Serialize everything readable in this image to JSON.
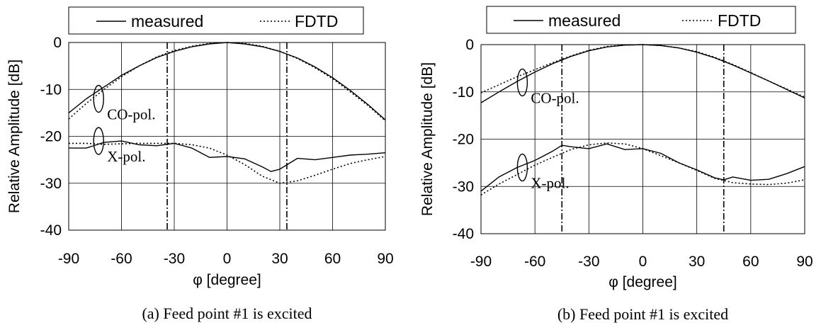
{
  "chart_data": [
    {
      "type": "line",
      "caption": "(a) Feed point #1 is excited",
      "xlabel": "φ [degree]",
      "ylabel": "Relative Amplitude [dB]",
      "xlim": [
        -90,
        90
      ],
      "ylim": [
        -40,
        0
      ],
      "x_ticks": [
        -90,
        -60,
        -30,
        0,
        30,
        60,
        90
      ],
      "y_ticks": [
        0,
        -10,
        -20,
        -30,
        -40
      ],
      "grid": true,
      "legend": {
        "position": "top",
        "entries": [
          {
            "label": "measured",
            "style": "solid"
          },
          {
            "label": "FDTD",
            "style": "dotted"
          }
        ]
      },
      "annotations": [
        {
          "text": "CO-pol.",
          "x": -73,
          "y": -12
        },
        {
          "text": "X-pol.",
          "x": -73,
          "y": -21
        }
      ],
      "vlines": [
        {
          "x": -34,
          "style": "dashdot"
        },
        {
          "x": 34,
          "style": "dashdot"
        }
      ],
      "series": [
        {
          "name": "measured",
          "group": "CO-pol.",
          "style": "solid",
          "x": [
            -90,
            -80,
            -70,
            -60,
            -50,
            -40,
            -30,
            -20,
            -10,
            0,
            10,
            20,
            30,
            40,
            50,
            60,
            70,
            80,
            90
          ],
          "y": [
            -15,
            -12,
            -9.5,
            -7,
            -5,
            -3.2,
            -1.9,
            -0.9,
            -0.3,
            0,
            -0.3,
            -0.9,
            -1.9,
            -3.3,
            -5.2,
            -7.5,
            -10.2,
            -13.2,
            -16.5
          ]
        },
        {
          "name": "FDTD",
          "group": "CO-pol.",
          "style": "dotted",
          "x": [
            -90,
            -80,
            -70,
            -60,
            -50,
            -40,
            -30,
            -20,
            -10,
            0,
            10,
            20,
            30,
            40,
            50,
            60,
            70,
            80,
            90
          ],
          "y": [
            -16.3,
            -13,
            -10,
            -7.3,
            -5,
            -3.1,
            -1.7,
            -0.8,
            -0.2,
            0,
            -0.2,
            -0.8,
            -1.9,
            -3.4,
            -5.4,
            -7.7,
            -10.5,
            -13.4,
            -16.7
          ]
        },
        {
          "name": "measured",
          "group": "X-pol.",
          "style": "solid",
          "x": [
            -90,
            -80,
            -70,
            -60,
            -50,
            -40,
            -30,
            -20,
            -10,
            0,
            10,
            20,
            25,
            30,
            40,
            50,
            60,
            70,
            80,
            90
          ],
          "y": [
            -22.5,
            -22.5,
            -21.3,
            -21,
            -21.8,
            -22,
            -21.5,
            -22.5,
            -24.5,
            -24.3,
            -24.8,
            -26.5,
            -27.5,
            -27,
            -24.7,
            -25,
            -24.5,
            -24,
            -23.8,
            -23.5
          ]
        },
        {
          "name": "FDTD",
          "group": "X-pol.",
          "style": "dotted",
          "x": [
            -90,
            -80,
            -70,
            -60,
            -50,
            -40,
            -30,
            -20,
            -10,
            0,
            10,
            20,
            30,
            40,
            50,
            60,
            70,
            80,
            90
          ],
          "y": [
            -21.5,
            -21.5,
            -21.7,
            -21.6,
            -21.5,
            -21.5,
            -21.5,
            -21.8,
            -22.5,
            -24,
            -26,
            -28.5,
            -30,
            -29.5,
            -28.3,
            -27,
            -25.8,
            -25,
            -24.3
          ]
        }
      ]
    },
    {
      "type": "line",
      "caption": "(b) Feed point #1 is excited",
      "xlabel": "φ [degree]",
      "ylabel": "Relative Amplitude [dB]",
      "xlim": [
        -90,
        90
      ],
      "ylim": [
        -40,
        0
      ],
      "x_ticks": [
        -90,
        -60,
        -30,
        0,
        30,
        60,
        90
      ],
      "y_ticks": [
        0,
        -10,
        -20,
        -30,
        -40
      ],
      "grid": true,
      "legend": {
        "position": "top",
        "entries": [
          {
            "label": "measured",
            "style": "solid"
          },
          {
            "label": "FDTD",
            "style": "dotted"
          }
        ]
      },
      "annotations": [
        {
          "text": "CO-pol.",
          "x": -67,
          "y": -8
        },
        {
          "text": "X-pol.",
          "x": -67,
          "y": -26
        }
      ],
      "vlines": [
        {
          "x": -45,
          "style": "dashdot"
        },
        {
          "x": 45,
          "style": "dashdot"
        }
      ],
      "series": [
        {
          "name": "measured",
          "group": "CO-pol.",
          "style": "solid",
          "x": [
            -90,
            -80,
            -70,
            -60,
            -50,
            -40,
            -30,
            -20,
            -10,
            0,
            10,
            20,
            30,
            40,
            50,
            60,
            70,
            80,
            90
          ],
          "y": [
            -12.3,
            -10,
            -7.8,
            -5.8,
            -4,
            -2.5,
            -1.3,
            -0.5,
            -0.1,
            0,
            -0.2,
            -0.7,
            -1.6,
            -2.8,
            -4.3,
            -6,
            -7.7,
            -9.5,
            -11.3
          ]
        },
        {
          "name": "FDTD",
          "group": "CO-pol.",
          "style": "dotted",
          "x": [
            -90,
            -80,
            -70,
            -60,
            -50,
            -40,
            -30,
            -20,
            -10,
            0,
            10,
            20,
            30,
            40,
            50,
            60,
            70,
            80,
            90
          ],
          "y": [
            -10.2,
            -8.5,
            -6.8,
            -5.3,
            -3.8,
            -2.4,
            -1.2,
            -0.4,
            -0.1,
            0,
            -0.2,
            -0.7,
            -1.5,
            -2.7,
            -4.2,
            -5.9,
            -7.7,
            -9.4,
            -11.1
          ]
        },
        {
          "name": "measured",
          "group": "X-pol.",
          "style": "solid",
          "x": [
            -90,
            -80,
            -70,
            -60,
            -50,
            -45,
            -40,
            -30,
            -20,
            -10,
            0,
            10,
            20,
            30,
            40,
            45,
            50,
            60,
            70,
            80,
            90
          ],
          "y": [
            -31,
            -28,
            -26,
            -24.5,
            -22.5,
            -21.3,
            -21.6,
            -22,
            -21,
            -22.2,
            -22,
            -23,
            -25,
            -26.5,
            -28.2,
            -28.6,
            -28,
            -28.7,
            -28.5,
            -27.3,
            -25.8
          ]
        },
        {
          "name": "FDTD",
          "group": "X-pol.",
          "style": "dotted",
          "x": [
            -90,
            -80,
            -70,
            -60,
            -50,
            -40,
            -30,
            -20,
            -10,
            0,
            10,
            20,
            30,
            40,
            50,
            60,
            70,
            80,
            90
          ],
          "y": [
            -31.8,
            -29.5,
            -27.5,
            -25.5,
            -23.8,
            -22.2,
            -21.2,
            -20.8,
            -21,
            -22,
            -23.5,
            -25,
            -26.6,
            -28.3,
            -29.2,
            -29.5,
            -29.6,
            -29.3,
            -28.6
          ]
        }
      ]
    }
  ]
}
